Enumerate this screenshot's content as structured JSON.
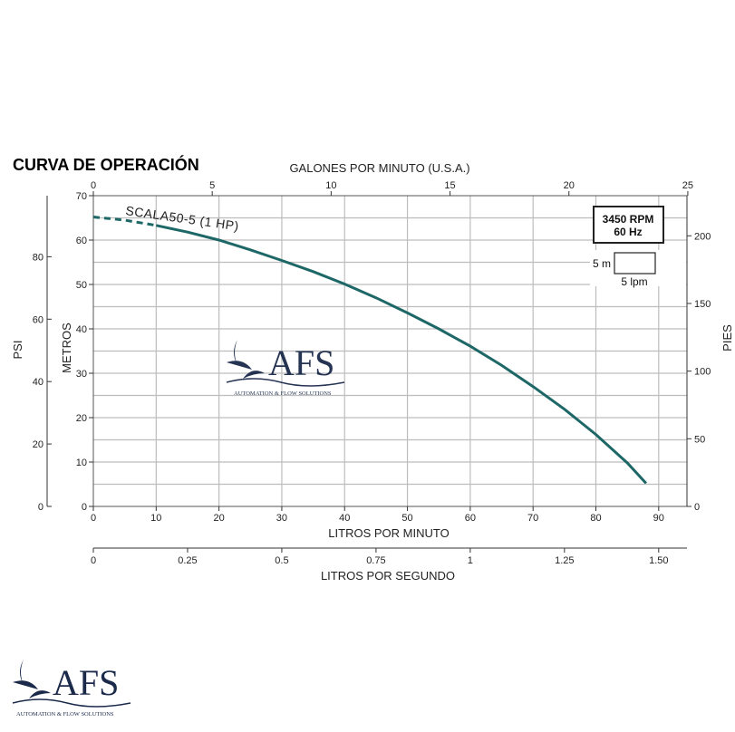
{
  "chart_data": {
    "type": "line",
    "title": "CURVA DE OPERACIÓN",
    "series": [
      {
        "name": "SCALA50-5 (1 HP)",
        "x_lpm": [
          0,
          5,
          10,
          15,
          20,
          25,
          30,
          35,
          40,
          45,
          50,
          55,
          60,
          65,
          70,
          75,
          80,
          85,
          88
        ],
        "y_m": [
          65.2,
          64.5,
          63.3,
          61.8,
          60.0,
          57.8,
          55.4,
          52.9,
          50.1,
          47.0,
          43.6,
          40.0,
          36.1,
          31.8,
          27.0,
          21.9,
          16.2,
          9.8,
          5.2
        ],
        "dashed_until_x": 10
      }
    ],
    "axes": {
      "bottom": {
        "label": "LITROS POR MINUTO",
        "range": [
          0,
          94.5
        ],
        "ticks": [
          "0",
          "10",
          "20",
          "30",
          "40",
          "50",
          "60",
          "70",
          "80",
          "90"
        ]
      },
      "top": {
        "label": "GALONES POR MINUTO (U.S.A.)",
        "range": [
          0,
          25
        ],
        "ticks": [
          "0",
          "5",
          "10",
          "15",
          "20",
          "25"
        ]
      },
      "left_inner": {
        "label": "METROS",
        "range": [
          0,
          70
        ],
        "ticks": [
          "0",
          "10",
          "20",
          "30",
          "40",
          "50",
          "60",
          "70"
        ]
      },
      "left_outer": {
        "label": "PSI",
        "ticks": [
          "0",
          "20",
          "40",
          "60",
          "80"
        ]
      },
      "right": {
        "label": "PIES",
        "ticks": [
          "0",
          "50",
          "100",
          "150",
          "200"
        ]
      },
      "secondary_bottom": {
        "label": "LITROS POR SEGUNDO",
        "ticks": [
          "0",
          "0.25",
          "0.5",
          "0.75",
          "1",
          "1.25",
          "1.50"
        ]
      }
    },
    "grid": true
  },
  "legend_box": {
    "rpm": "3450 RPM",
    "hz": "60 Hz",
    "scale_m": "5 m",
    "scale_lpm": "5 lpm"
  },
  "watermark": {
    "name": "AFS",
    "tagline": "AUTOMATION & FLOW SOLUTIONS"
  },
  "footer_logo": {
    "name": "AFS",
    "tagline": "AUTOMATION & FLOW SOLUTIONS"
  },
  "colors": {
    "curve": "#1e6767",
    "grid": "#bdbdbd",
    "logo": "#1b2a4a"
  }
}
